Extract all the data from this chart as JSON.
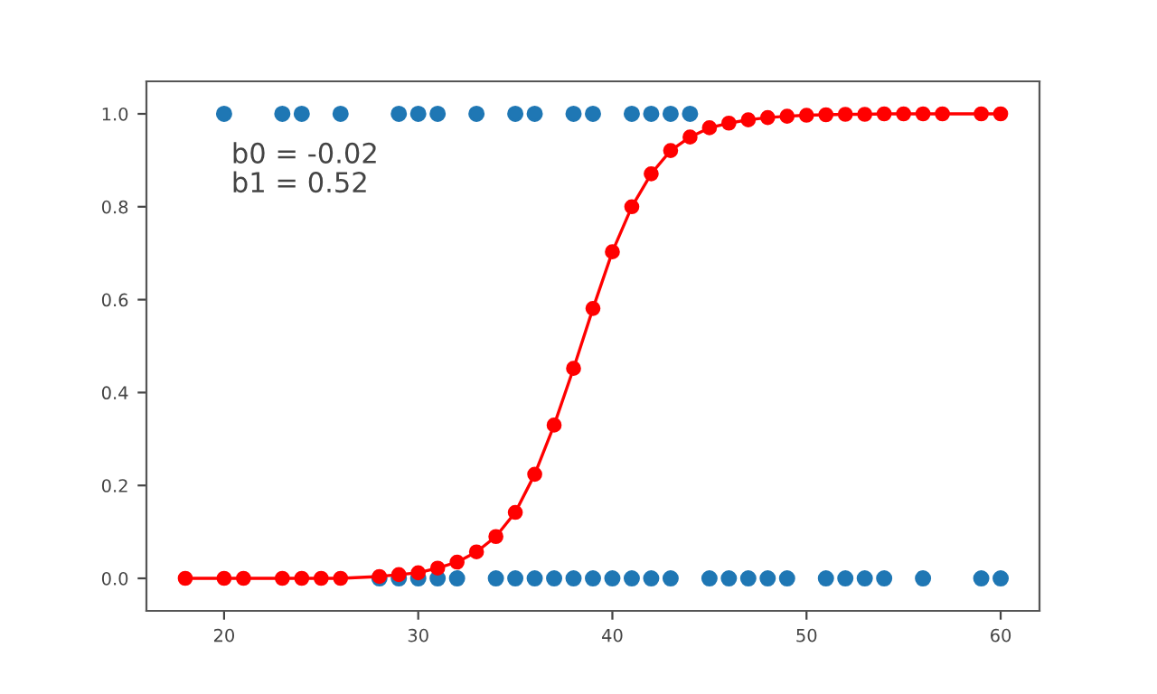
{
  "chart_data": {
    "type": "scatter",
    "series": [
      {
        "color": "#1f77b4",
        "marker": "circle",
        "x": [
          20,
          23,
          24,
          26,
          29,
          30,
          31,
          33,
          35,
          36,
          38,
          39,
          41,
          42,
          43,
          44,
          28,
          29,
          30,
          31,
          32,
          34,
          35,
          36,
          37,
          38,
          39,
          40,
          41,
          42,
          43,
          45,
          46,
          47,
          48,
          49,
          51,
          52,
          53,
          54,
          56,
          59,
          60
        ],
        "values": [
          1,
          1,
          1,
          1,
          1,
          1,
          1,
          1,
          1,
          1,
          1,
          1,
          1,
          1,
          1,
          1,
          0,
          0,
          0,
          0,
          0,
          0,
          0,
          0,
          0,
          0,
          0,
          0,
          0,
          0,
          0,
          0,
          0,
          0,
          0,
          0,
          0,
          0,
          0,
          0,
          0,
          0,
          0
        ]
      },
      {
        "type": "line",
        "color": "#ff0000",
        "marker": "circle",
        "line_style": "solid",
        "x": [
          18,
          20,
          21,
          23,
          24,
          25,
          26,
          28,
          29,
          30,
          31,
          32,
          33,
          34,
          35,
          36,
          37,
          38,
          39,
          40,
          41,
          42,
          43,
          44,
          45,
          46,
          47,
          48,
          49,
          50,
          51,
          52,
          53,
          54,
          55,
          56,
          57,
          59,
          60
        ],
        "values": [
          0,
          0,
          0,
          0,
          0,
          0,
          0,
          0.004,
          0.008,
          0.012,
          0.022,
          0.035,
          0.057,
          0.09,
          0.142,
          0.224,
          0.33,
          0.452,
          0.581,
          0.703,
          0.8,
          0.871,
          0.921,
          0.95,
          0.97,
          0.98,
          0.987,
          0.992,
          0.995,
          0.997,
          0.998,
          0.999,
          0.999,
          1,
          1,
          1,
          1,
          1,
          1
        ]
      }
    ],
    "xlim": [
      16,
      62
    ],
    "xticks": [
      20,
      30,
      40,
      50,
      60
    ],
    "ylim": [
      -0.07,
      1.07
    ],
    "yticks": [
      {
        "value": 0,
        "label": "0.0"
      },
      {
        "value": 0.2,
        "label": "0.2"
      },
      {
        "value": 0.4,
        "label": "0.4"
      },
      {
        "value": 0.6,
        "label": "0.6"
      },
      {
        "value": 0.8,
        "label": "0.8"
      },
      {
        "value": 1,
        "label": "1.0"
      }
    ],
    "grid": false,
    "annotations": [
      "b0 = -0.02",
      "b1 = 0.52"
    ]
  }
}
